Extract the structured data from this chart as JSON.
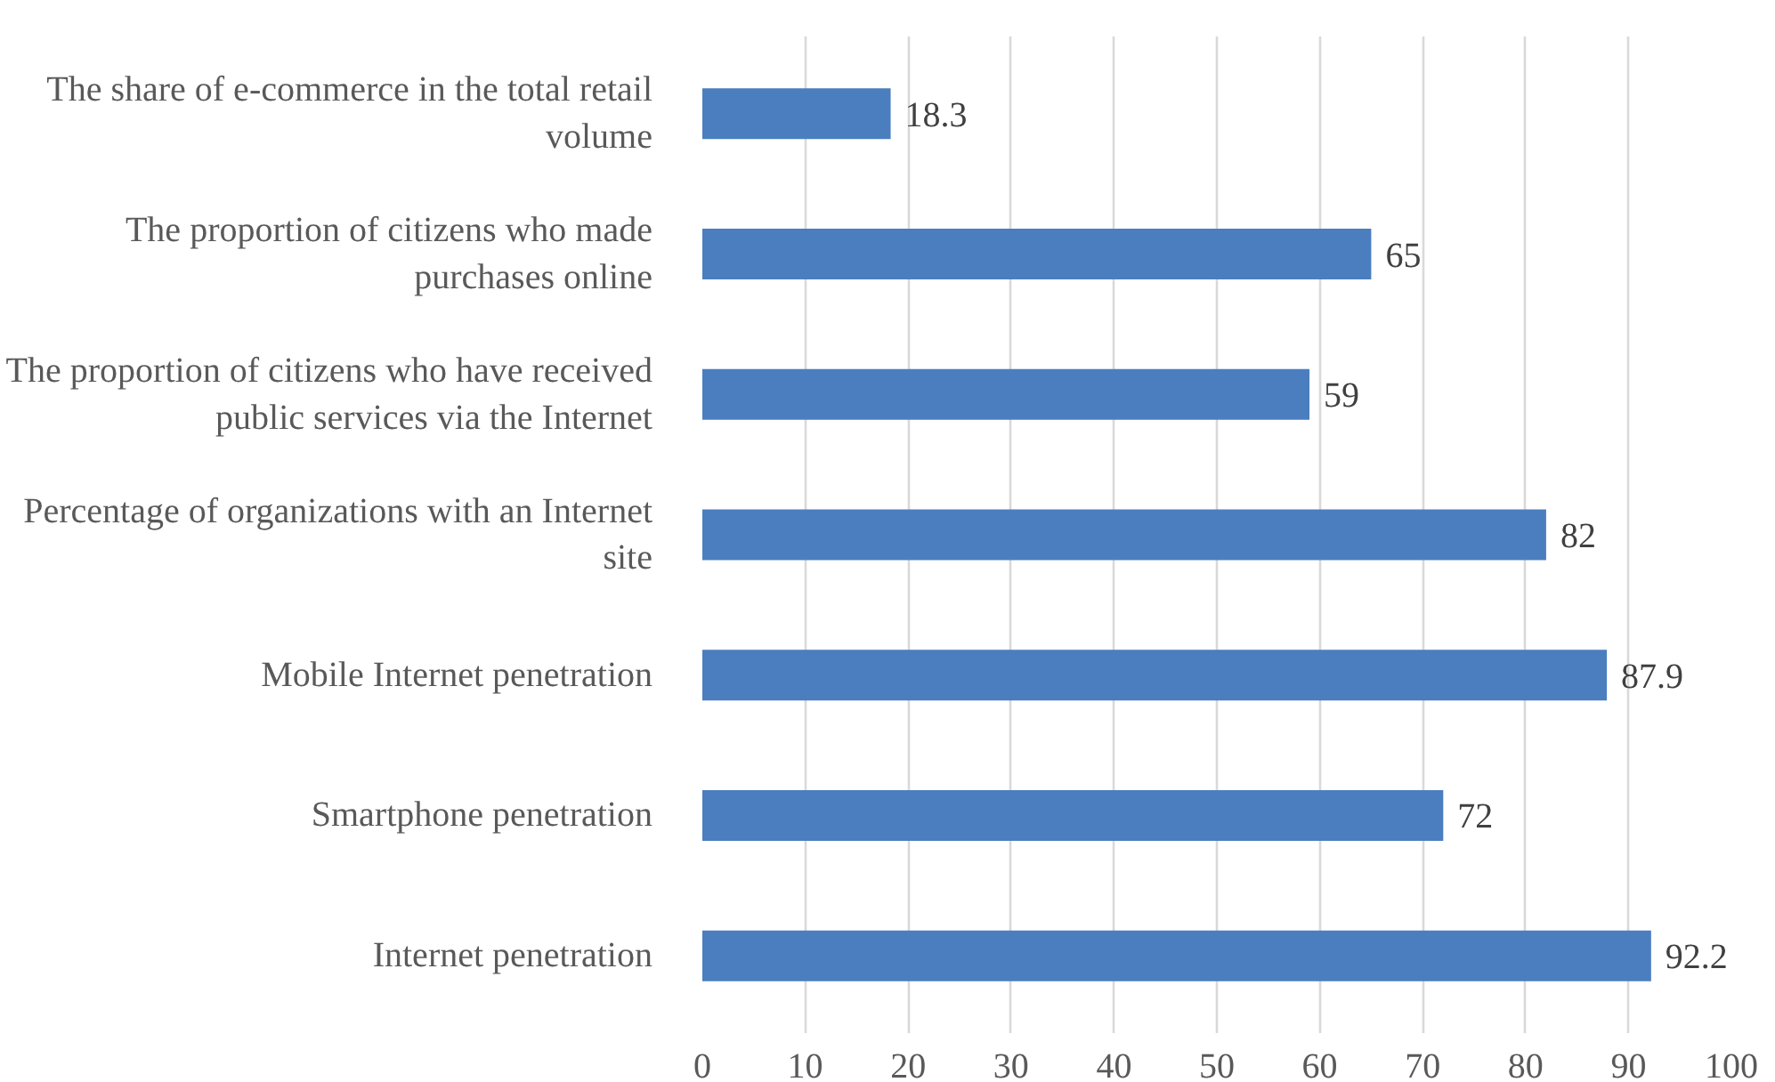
{
  "chart_data": {
    "type": "bar",
    "orientation": "horizontal",
    "categories": [
      "The share of e-commerce in the total retail volume",
      "The proportion of citizens who made purchases online",
      "The proportion of citizens who have received public services via the Internet",
      "Percentage of organizations with an Internet site",
      "Mobile Internet penetration",
      "Smartphone penetration",
      "Internet penetration"
    ],
    "values": [
      18.3,
      65,
      59,
      82,
      87.9,
      72,
      92.2
    ],
    "color": "#4a7ebf",
    "xlim": [
      0,
      100
    ],
    "xticks": [
      0,
      10,
      20,
      30,
      40,
      50,
      60,
      70,
      80,
      90,
      100
    ],
    "grid": "x",
    "data_labels": true
  }
}
